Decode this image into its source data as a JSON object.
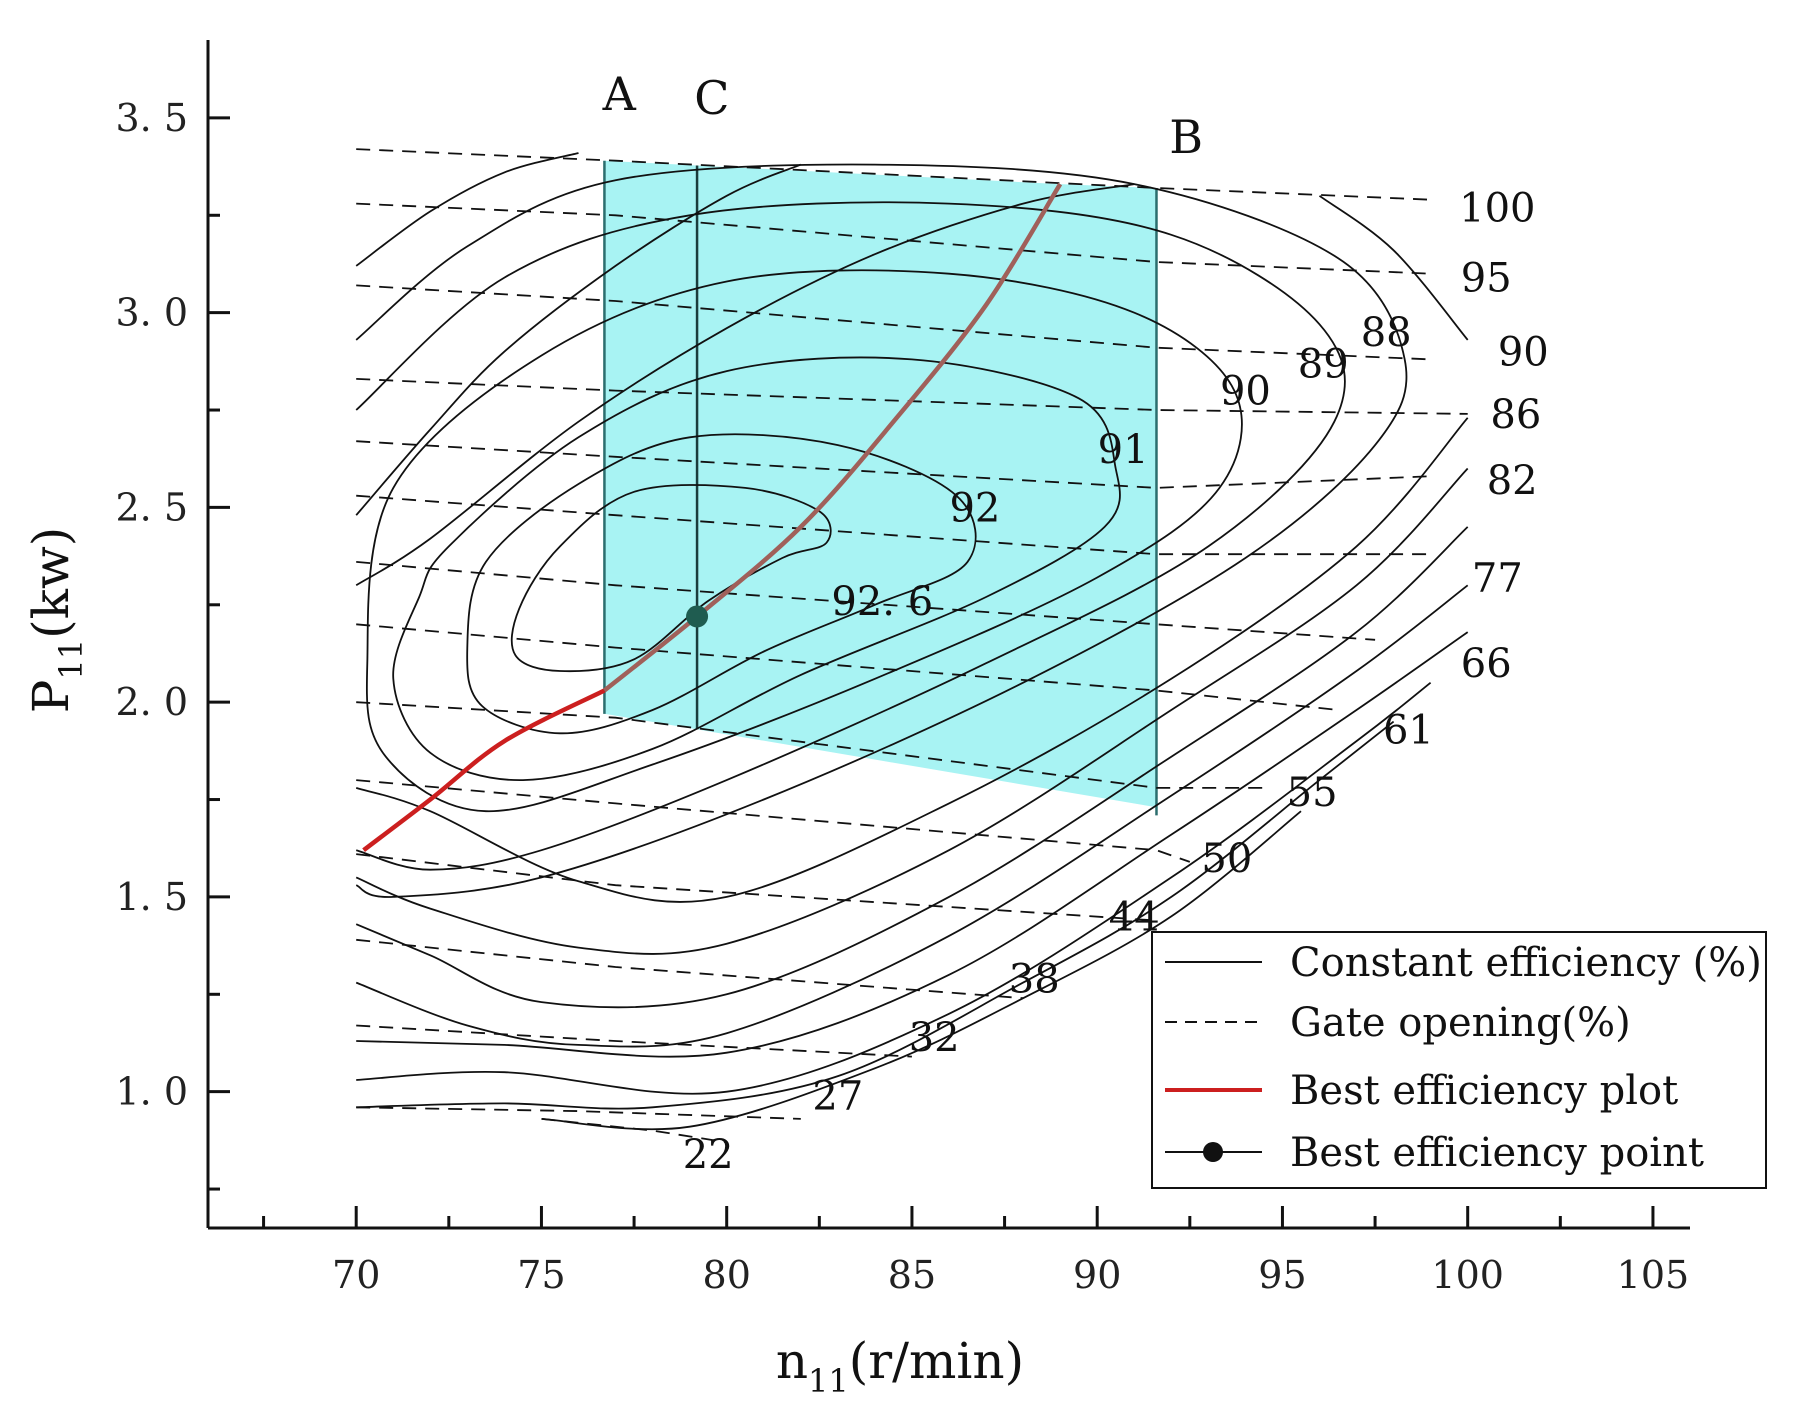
{
  "chart_data": {
    "type": "line",
    "title": "",
    "xlabel": {
      "main": "n",
      "sub": "11",
      "unit": "(r/min)"
    },
    "ylabel": {
      "main": "P",
      "sub": "11",
      "unit": "(kw)"
    },
    "xlim": [
      66,
      106
    ],
    "ylim": [
      0.65,
      3.7
    ],
    "xticks": [
      70,
      75,
      80,
      85,
      90,
      95,
      100,
      105
    ],
    "yticks": [
      1.0,
      1.5,
      2.0,
      2.5,
      3.0,
      3.5
    ],
    "ytick_labels": [
      "1. 0",
      "1. 5",
      "2. 0",
      "2. 5",
      "3. 0",
      "3. 5"
    ],
    "colors": {
      "efficiency": "#111111",
      "gate": "#111111",
      "best_plot": "#cc1f1f",
      "best_plot_in_region": "#a0605a",
      "region_fill": "#a8f3f3",
      "region_edge": "#2b6e6e",
      "best_point": "#1f5c50"
    },
    "region": {
      "labels": [
        "A",
        "C",
        "B"
      ],
      "x_bounds": [
        76.7,
        91.6
      ],
      "x_c": 79.2,
      "top": [
        [
          76.7,
          3.39
        ],
        [
          89,
          3.33
        ],
        [
          91.6,
          3.32
        ]
      ],
      "bottom": [
        [
          76.7,
          1.97
        ],
        [
          79.2,
          1.93
        ],
        [
          91.6,
          1.73
        ]
      ]
    },
    "gate_openings": [
      {
        "label": "100",
        "points": [
          [
            70,
            3.42
          ],
          [
            77,
            3.39
          ],
          [
            91.6,
            3.32
          ],
          [
            99,
            3.29
          ]
        ]
      },
      {
        "label": "95",
        "points": [
          [
            70,
            3.28
          ],
          [
            77,
            3.25
          ],
          [
            91.6,
            3.13
          ],
          [
            99,
            3.1
          ]
        ]
      },
      {
        "label": "90",
        "points": [
          [
            70,
            3.07
          ],
          [
            77,
            3.03
          ],
          [
            91.6,
            2.91
          ],
          [
            99,
            2.88
          ]
        ]
      },
      {
        "label": "86",
        "points": [
          [
            70,
            2.83
          ],
          [
            77,
            2.8
          ],
          [
            91.6,
            2.75
          ],
          [
            100,
            2.74
          ]
        ]
      },
      {
        "label": "82",
        "points": [
          [
            70,
            2.67
          ],
          [
            77,
            2.63
          ],
          [
            91.6,
            2.55
          ],
          [
            99,
            2.58
          ]
        ]
      },
      {
        "label": "77",
        "points": [
          [
            70,
            2.53
          ],
          [
            77,
            2.48
          ],
          [
            91.6,
            2.38
          ],
          [
            99,
            2.38
          ]
        ]
      },
      {
        "label": "66",
        "points": [
          [
            70,
            2.36
          ],
          [
            77,
            2.3
          ],
          [
            91.6,
            2.2
          ],
          [
            97.5,
            2.16
          ]
        ]
      },
      {
        "label": "61",
        "points": [
          [
            70,
            2.2
          ],
          [
            77,
            2.14
          ],
          [
            91.6,
            2.03
          ],
          [
            96.5,
            1.98
          ]
        ]
      },
      {
        "label": "55",
        "points": [
          [
            70,
            2.0
          ],
          [
            77,
            1.96
          ],
          [
            91.6,
            1.78
          ],
          [
            94.5,
            1.78
          ]
        ]
      },
      {
        "label": "50",
        "points": [
          [
            70,
            1.8
          ],
          [
            77,
            1.74
          ],
          [
            91.6,
            1.62
          ],
          [
            92.5,
            1.59
          ]
        ]
      },
      {
        "label": "44",
        "points": [
          [
            70,
            1.61
          ],
          [
            77,
            1.53
          ],
          [
            91.5,
            1.44
          ]
        ]
      },
      {
        "label": "38",
        "points": [
          [
            70,
            1.39
          ],
          [
            77,
            1.32
          ],
          [
            88,
            1.24
          ]
        ]
      },
      {
        "label": "32",
        "points": [
          [
            70,
            1.17
          ],
          [
            77,
            1.13
          ],
          [
            85,
            1.09
          ]
        ]
      },
      {
        "label": "27",
        "points": [
          [
            70,
            0.96
          ],
          [
            76,
            0.95
          ],
          [
            82,
            0.93
          ]
        ]
      },
      {
        "label": "22",
        "points": [
          [
            75,
            0.93
          ],
          [
            78,
            0.9
          ],
          [
            80,
            0.87
          ]
        ]
      }
    ],
    "gate_labels": [
      {
        "text": "100",
        "x": 100.8,
        "y": 3.27
      },
      {
        "text": "95",
        "x": 100.5,
        "y": 3.09
      },
      {
        "text": "90",
        "x": 101.5,
        "y": 2.9
      },
      {
        "text": "86",
        "x": 101.3,
        "y": 2.74
      },
      {
        "text": "82",
        "x": 101.2,
        "y": 2.57
      },
      {
        "text": "77",
        "x": 100.8,
        "y": 2.32
      },
      {
        "text": "66",
        "x": 100.5,
        "y": 2.1
      },
      {
        "text": "61",
        "x": 98.4,
        "y": 1.93
      },
      {
        "text": "55",
        "x": 95.8,
        "y": 1.77
      },
      {
        "text": "50",
        "x": 93.5,
        "y": 1.6
      },
      {
        "text": "44",
        "x": 91.0,
        "y": 1.45
      },
      {
        "text": "38",
        "x": 88.3,
        "y": 1.29
      },
      {
        "text": "32",
        "x": 85.6,
        "y": 1.14
      },
      {
        "text": "27",
        "x": 83.0,
        "y": 0.99
      },
      {
        "text": "22",
        "x": 79.5,
        "y": 0.84
      }
    ],
    "efficiency_contours": [
      {
        "label": "92.6",
        "points": [
          [
            75.5,
            2.4
          ],
          [
            77.5,
            2.54
          ],
          [
            80.5,
            2.55
          ],
          [
            82.5,
            2.49
          ],
          [
            82.7,
            2.41
          ],
          [
            81.5,
            2.37
          ],
          [
            79.5,
            2.26
          ],
          [
            77.5,
            2.11
          ],
          [
            75.5,
            2.08
          ],
          [
            74.3,
            2.12
          ],
          [
            74.4,
            2.24
          ],
          [
            75.5,
            2.4
          ]
        ],
        "closed": true
      },
      {
        "label": "92",
        "points": [
          [
            73.5,
            2.36
          ],
          [
            76,
            2.56
          ],
          [
            79,
            2.68
          ],
          [
            83,
            2.66
          ],
          [
            86.2,
            2.53
          ],
          [
            86.5,
            2.36
          ],
          [
            84,
            2.25
          ],
          [
            81,
            2.13
          ],
          [
            78,
            1.98
          ],
          [
            75.5,
            1.92
          ],
          [
            73.4,
            1.99
          ],
          [
            73,
            2.14
          ],
          [
            73.5,
            2.36
          ]
        ],
        "closed": true
      },
      {
        "label": "91",
        "points": [
          [
            72.5,
            2.4
          ],
          [
            76,
            2.68
          ],
          [
            80,
            2.85
          ],
          [
            85,
            2.88
          ],
          [
            89.5,
            2.78
          ],
          [
            90.5,
            2.6
          ],
          [
            90.2,
            2.45
          ],
          [
            87,
            2.27
          ],
          [
            82,
            2.07
          ],
          [
            78,
            1.88
          ],
          [
            74.5,
            1.8
          ],
          [
            72,
            1.87
          ],
          [
            71,
            2.06
          ],
          [
            71.7,
            2.27
          ],
          [
            72.5,
            2.4
          ]
        ],
        "closed": true
      },
      {
        "label": "90",
        "points": [
          [
            71,
            2.55
          ],
          [
            75,
            2.89
          ],
          [
            80,
            3.08
          ],
          [
            86,
            3.1
          ],
          [
            91,
            3.0
          ],
          [
            93.7,
            2.8
          ],
          [
            93.3,
            2.55
          ],
          [
            90,
            2.32
          ],
          [
            84,
            2.06
          ],
          [
            78,
            1.84
          ],
          [
            73.5,
            1.72
          ],
          [
            70.8,
            1.86
          ],
          [
            70.3,
            2.1
          ],
          [
            71,
            2.55
          ]
        ],
        "closed": true
      },
      {
        "label": "89",
        "points": [
          [
            70,
            2.75
          ],
          [
            74,
            3.09
          ],
          [
            79,
            3.25
          ],
          [
            86,
            3.28
          ],
          [
            92,
            3.2
          ],
          [
            96,
            2.97
          ],
          [
            96.4,
            2.72
          ],
          [
            93,
            2.4
          ],
          [
            87,
            2.1
          ],
          [
            80,
            1.8
          ],
          [
            75,
            1.62
          ],
          [
            72,
            1.57
          ],
          [
            70,
            1.62
          ]
        ],
        "closed": false
      },
      {
        "label": "88",
        "points": [
          [
            70,
            2.93
          ],
          [
            73,
            3.17
          ],
          [
            77,
            3.34
          ],
          [
            84,
            3.38
          ],
          [
            91,
            3.33
          ],
          [
            96.5,
            3.14
          ],
          [
            98.3,
            2.88
          ],
          [
            97.5,
            2.66
          ],
          [
            94,
            2.37
          ],
          [
            88,
            2.05
          ],
          [
            81,
            1.75
          ],
          [
            75,
            1.55
          ],
          [
            71,
            1.5
          ],
          [
            70,
            1.53
          ]
        ],
        "closed": false
      },
      {
        "label": "",
        "points": [
          [
            96,
            3.3
          ],
          [
            98,
            3.16
          ],
          [
            100,
            2.93
          ]
        ],
        "closed": false
      },
      {
        "label": "",
        "points": [
          [
            70,
            3.12
          ],
          [
            72,
            3.26
          ],
          [
            74,
            3.36
          ],
          [
            76,
            3.41
          ]
        ],
        "closed": false
      },
      {
        "label": "",
        "points": [
          [
            70,
            2.48
          ],
          [
            72,
            2.7
          ],
          [
            74,
            2.9
          ],
          [
            77,
            3.12
          ],
          [
            80,
            3.3
          ],
          [
            82,
            3.38
          ]
        ],
        "closed": false
      },
      {
        "label": "",
        "points": [
          [
            70,
            2.3
          ],
          [
            72,
            2.42
          ],
          [
            76,
            2.72
          ],
          [
            80,
            2.96
          ],
          [
            84,
            3.15
          ],
          [
            88,
            3.28
          ],
          [
            91,
            3.33
          ]
        ],
        "closed": false
      },
      {
        "label": "",
        "points": [
          [
            70,
            1.78
          ],
          [
            72,
            1.72
          ],
          [
            76,
            1.54
          ],
          [
            80,
            1.5
          ],
          [
            86,
            1.74
          ],
          [
            92,
            2.06
          ],
          [
            97,
            2.4
          ],
          [
            100,
            2.73
          ]
        ],
        "closed": false
      },
      {
        "label": "",
        "points": [
          [
            70,
            1.55
          ],
          [
            72,
            1.47
          ],
          [
            76,
            1.37
          ],
          [
            80,
            1.38
          ],
          [
            86,
            1.62
          ],
          [
            92,
            1.98
          ],
          [
            97,
            2.3
          ],
          [
            100,
            2.6
          ]
        ],
        "closed": false
      },
      {
        "label": "",
        "points": [
          [
            70,
            1.43
          ],
          [
            72,
            1.35
          ],
          [
            75,
            1.23
          ],
          [
            80,
            1.25
          ],
          [
            86,
            1.5
          ],
          [
            92,
            1.86
          ],
          [
            97,
            2.18
          ],
          [
            100,
            2.45
          ]
        ],
        "closed": false
      },
      {
        "label": "",
        "points": [
          [
            70,
            1.28
          ],
          [
            73,
            1.17
          ],
          [
            76,
            1.12
          ],
          [
            80,
            1.15
          ],
          [
            86,
            1.4
          ],
          [
            92,
            1.76
          ],
          [
            97,
            2.08
          ],
          [
            100,
            2.3
          ]
        ],
        "closed": false
      },
      {
        "label": "",
        "points": [
          [
            70,
            1.13
          ],
          [
            74,
            1.12
          ],
          [
            80,
            1.1
          ],
          [
            86,
            1.3
          ],
          [
            92,
            1.66
          ],
          [
            97,
            1.98
          ],
          [
            100,
            2.18
          ]
        ],
        "closed": false
      },
      {
        "label": "",
        "points": [
          [
            70,
            1.03
          ],
          [
            74,
            1.05
          ],
          [
            80,
            1.0
          ],
          [
            86,
            1.2
          ],
          [
            92,
            1.55
          ],
          [
            97,
            1.9
          ],
          [
            99,
            2.05
          ]
        ],
        "closed": false
      },
      {
        "label": "",
        "points": [
          [
            70,
            0.96
          ],
          [
            74,
            0.97
          ],
          [
            78,
            0.96
          ],
          [
            83,
            1.04
          ],
          [
            88,
            1.28
          ],
          [
            92,
            1.5
          ],
          [
            96,
            1.8
          ],
          [
            98,
            1.95
          ]
        ],
        "closed": false
      },
      {
        "label": "",
        "points": [
          [
            75,
            0.93
          ],
          [
            79,
            0.91
          ],
          [
            84,
            1.06
          ],
          [
            88,
            1.24
          ],
          [
            92,
            1.45
          ],
          [
            95.5,
            1.72
          ]
        ],
        "closed": false
      }
    ],
    "efficiency_labels": [
      {
        "text": "92. 6",
        "x": 84.2,
        "y": 2.26
      },
      {
        "text": "92",
        "x": 86.7,
        "y": 2.5
      },
      {
        "text": "91",
        "x": 90.7,
        "y": 2.65
      },
      {
        "text": "90",
        "x": 94.0,
        "y": 2.8
      },
      {
        "text": "89",
        "x": 96.1,
        "y": 2.87
      },
      {
        "text": "88",
        "x": 97.8,
        "y": 2.95
      }
    ],
    "best_efficiency_plot": {
      "x": [
        70.2,
        72,
        74,
        76.7,
        79.2,
        82,
        84.5,
        87,
        89
      ],
      "y": [
        1.62,
        1.75,
        1.9,
        2.03,
        2.22,
        2.45,
        2.72,
        3.02,
        3.33
      ]
    },
    "best_efficiency_point": {
      "x": 79.2,
      "y": 2.22
    },
    "legend": {
      "position": "bottom-right",
      "items": [
        {
          "key": "efficiency",
          "label": "Constant efficiency (%)",
          "style": "solid"
        },
        {
          "key": "gate",
          "label": "Gate opening(%)",
          "style": "dashed"
        },
        {
          "key": "best_plot",
          "label": "Best efficiency plot",
          "style": "red"
        },
        {
          "key": "best_point",
          "label": "Best efficiency point",
          "style": "point"
        }
      ]
    }
  }
}
